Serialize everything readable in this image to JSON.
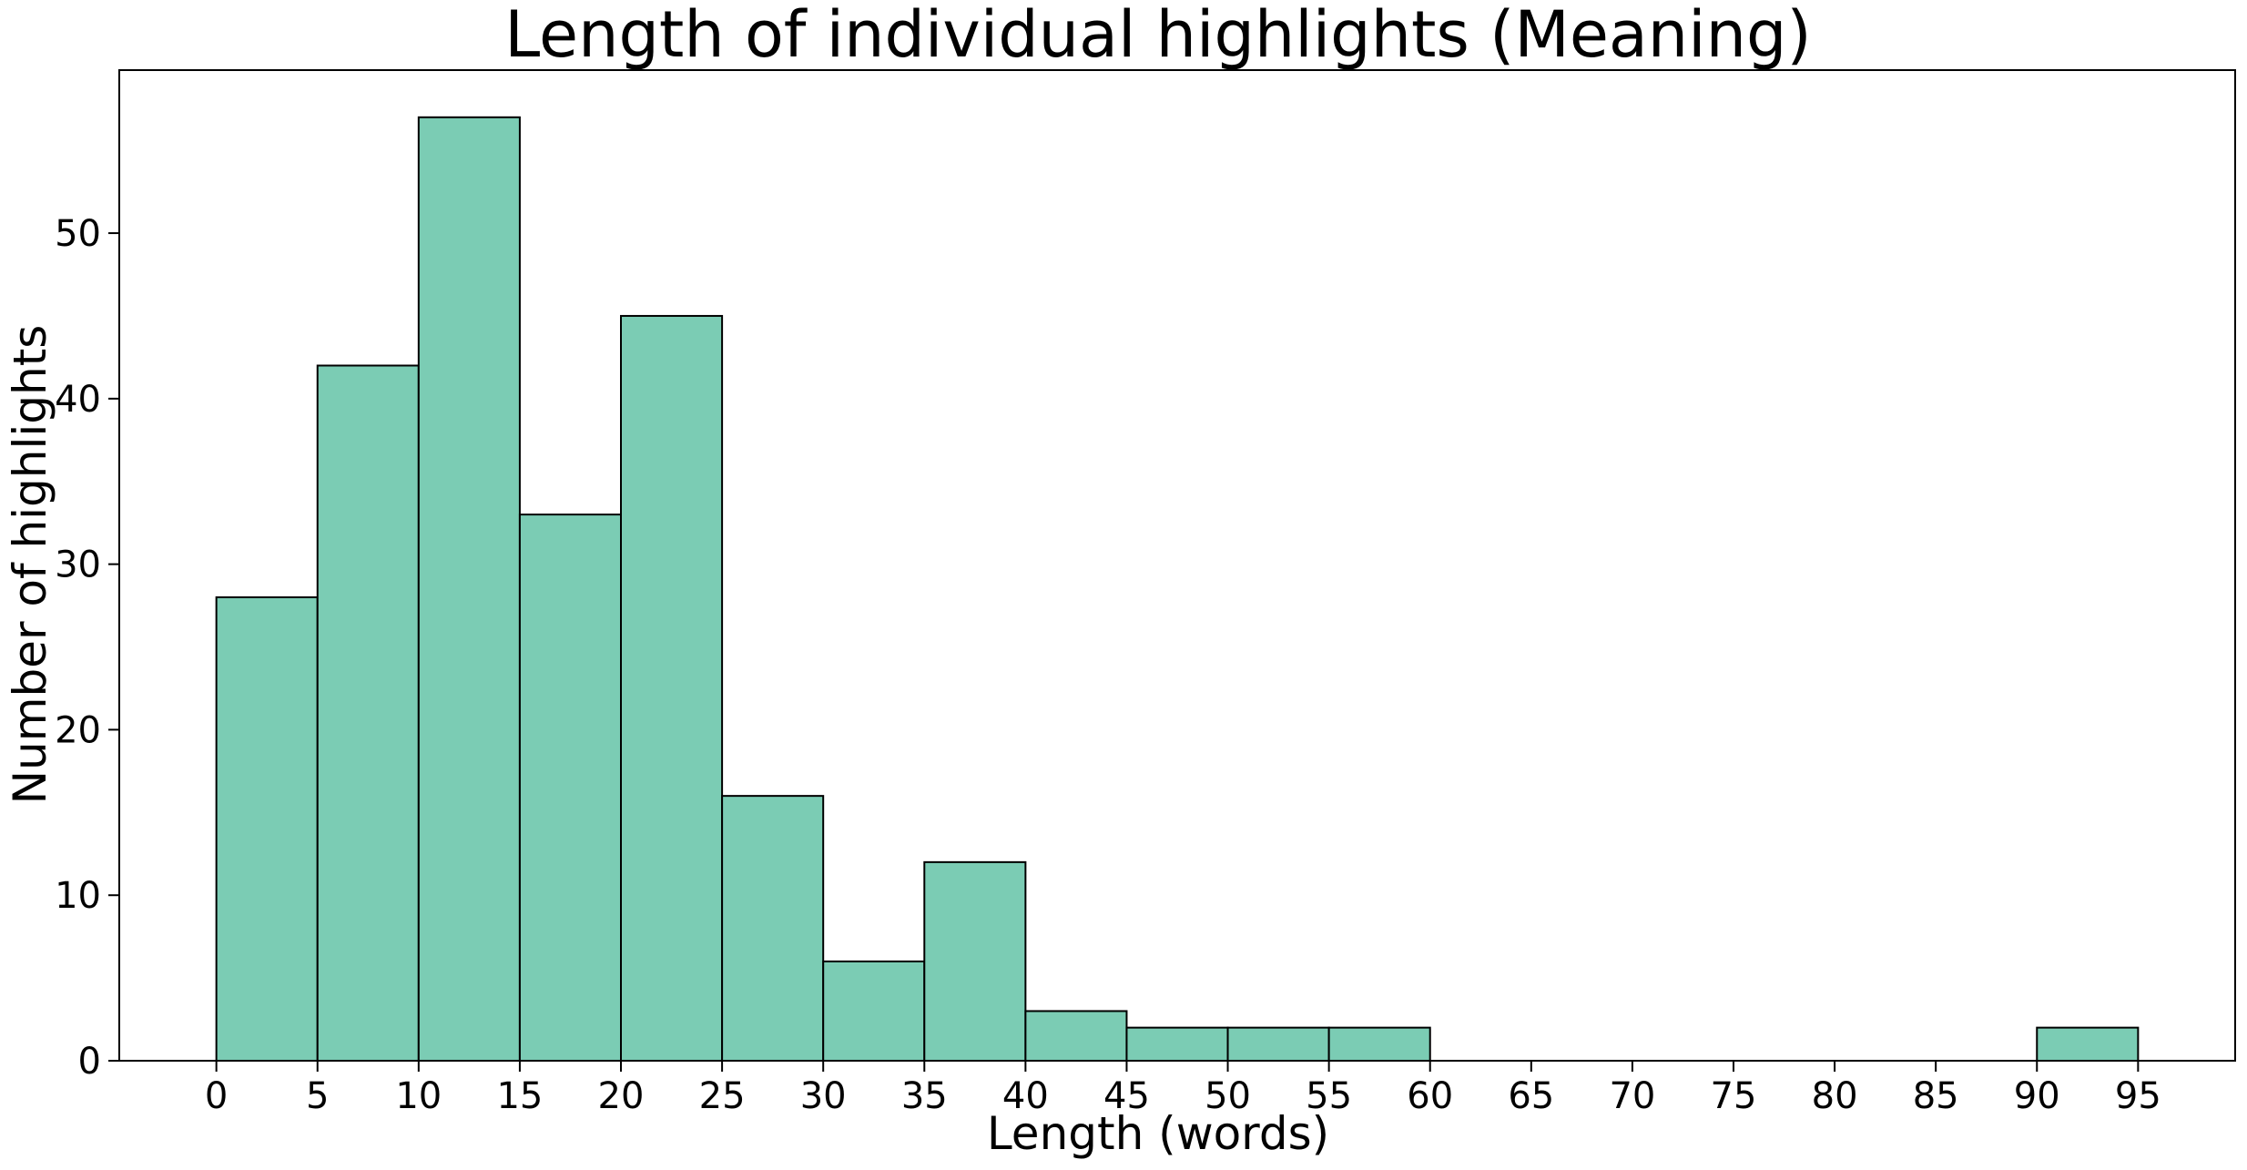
{
  "chart_data": {
    "type": "bar",
    "title": "Length of individual highlights (Meaning)",
    "xlabel": "Length (words)",
    "ylabel": "Number of highlights",
    "bin_width": 5,
    "bins": [
      0,
      5,
      10,
      15,
      20,
      25,
      30,
      35,
      40,
      45,
      50,
      55,
      60,
      65,
      70,
      75,
      80,
      85,
      90
    ],
    "values": [
      28,
      42,
      57,
      33,
      45,
      16,
      6,
      12,
      3,
      2,
      2,
      2,
      0,
      0,
      0,
      0,
      0,
      0,
      2
    ],
    "xticks": [
      0,
      5,
      10,
      15,
      20,
      25,
      30,
      35,
      40,
      45,
      50,
      55,
      60,
      65,
      70,
      75,
      80,
      85,
      90,
      95
    ],
    "yticks": [
      0,
      10,
      20,
      30,
      40,
      50
    ],
    "xlim": [
      -4.8,
      99.8
    ],
    "ylim": [
      0,
      59.85
    ],
    "bar_color": "#7bccb4",
    "edge_color": "#000000",
    "grid": false,
    "legend": "none"
  }
}
